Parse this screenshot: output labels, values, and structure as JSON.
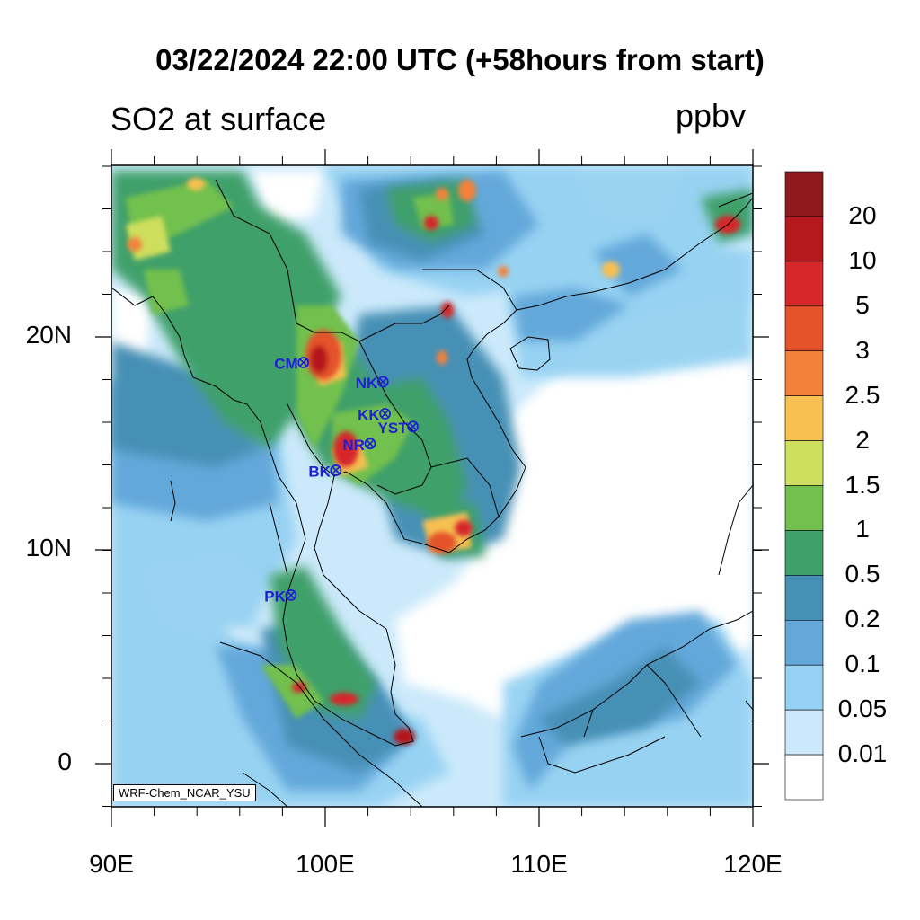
{
  "title": "03/22/2024 22:00 UTC (+58hours from start)",
  "left_title": "SO2 at surface",
  "units": "ppbv",
  "model_label": "WRF-Chem_NCAR_YSU",
  "lat_labels": [
    "20N",
    "10N",
    "0"
  ],
  "lon_labels": [
    "90E",
    "100E",
    "110E",
    "120E"
  ],
  "colorbar": {
    "labels": [
      "20",
      "10",
      "5",
      "3",
      "2.5",
      "2",
      "1.5",
      "1",
      "0.5",
      "0.2",
      "0.1",
      "0.05",
      "0.01"
    ],
    "colors": [
      "#8f1a1d",
      "#b5191e",
      "#d6282a",
      "#e45329",
      "#f4813a",
      "#f7c051",
      "#cede5d",
      "#72c04d",
      "#40a06a",
      "#4690b5",
      "#64a8da",
      "#95d1f2",
      "#cbe9fa",
      "#ffffff"
    ]
  },
  "stations": [
    {
      "label": "CM",
      "lat": 18.8,
      "lon": 98.98
    },
    {
      "label": "NK",
      "lat": 17.9,
      "lon": 102.7
    },
    {
      "label": "KK",
      "lat": 16.4,
      "lon": 102.8
    },
    {
      "label": "YST",
      "lat": 15.8,
      "lon": 104.1
    },
    {
      "label": "NR",
      "lat": 15.0,
      "lon": 102.1
    },
    {
      "label": "BK",
      "lat": 13.75,
      "lon": 100.5
    },
    {
      "label": "PK",
      "lat": 7.9,
      "lon": 98.4
    }
  ]
}
